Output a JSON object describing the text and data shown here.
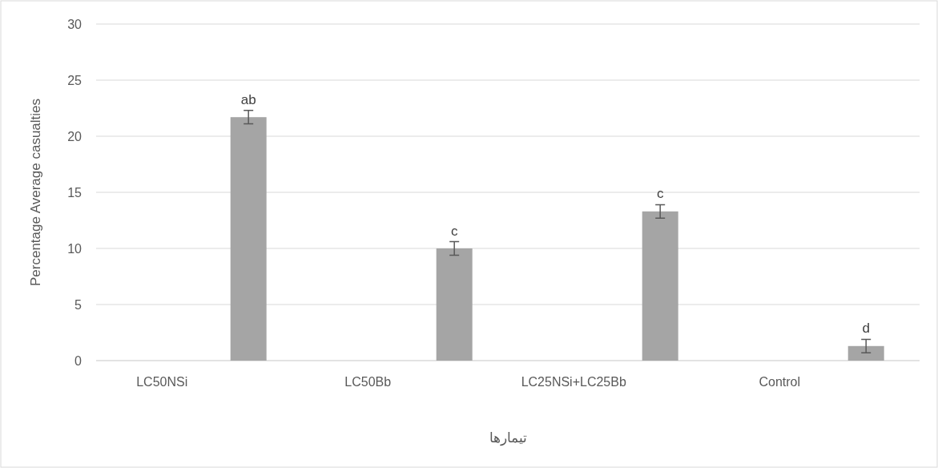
{
  "chart_data": {
    "type": "bar",
    "ylabel": "Percentage Average casualties",
    "xlabel": "تیمارها",
    "categories": [
      "LC50NSi",
      "LC50Bb",
      "LC25NSi+LC25Bb",
      "Control"
    ],
    "values": [
      21.7,
      10.0,
      13.3,
      1.3
    ],
    "color": "#a5a5a5",
    "errors": [
      0.6,
      0.6,
      0.6,
      0.6
    ],
    "ylim": [
      0,
      30
    ],
    "yticks": [
      0,
      5,
      10,
      15,
      20,
      25,
      30
    ],
    "grid": "y",
    "annotations": [
      "ab",
      "c",
      "c",
      "d"
    ]
  }
}
